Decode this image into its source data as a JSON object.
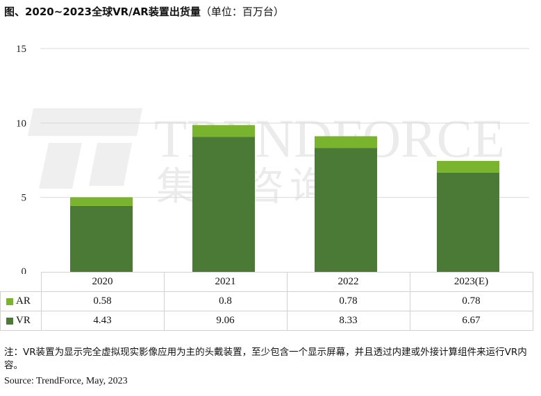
{
  "title": {
    "main": "图、2020~2023全球VR/AR装置出货量",
    "unit": "（单位：百万台）"
  },
  "watermark": {
    "brand": "TRENDFORCE",
    "chinese": "集邦咨询"
  },
  "chart_data": {
    "type": "bar",
    "stacked": true,
    "categories": [
      "2020",
      "2021",
      "2022",
      "2023(E)"
    ],
    "series": [
      {
        "name": "AR",
        "values": [
          0.58,
          0.8,
          0.78,
          0.78
        ],
        "color": "#7ab32e"
      },
      {
        "name": "VR",
        "values": [
          4.43,
          9.06,
          8.33,
          6.67
        ],
        "color": "#4a7a36"
      }
    ],
    "stack_order": [
      "VR",
      "AR"
    ],
    "ylim": [
      0,
      15
    ],
    "yticks": [
      0,
      5,
      10,
      15
    ],
    "grid": true,
    "data_table": true
  },
  "table": {
    "rows": [
      {
        "label": "AR",
        "values": [
          "0.58",
          "0.8",
          "0.78",
          "0.78"
        ]
      },
      {
        "label": "VR",
        "values": [
          "4.43",
          "9.06",
          "8.33",
          "6.67"
        ]
      }
    ]
  },
  "footnote": "注：VR装置为显示完全虚拟现实影像应用为主的头戴装置，至少包含一个显示屏幕，并且透过内建或外接计算组件来运行VR内容。",
  "source": "Source: TrendForce, May, 2023"
}
